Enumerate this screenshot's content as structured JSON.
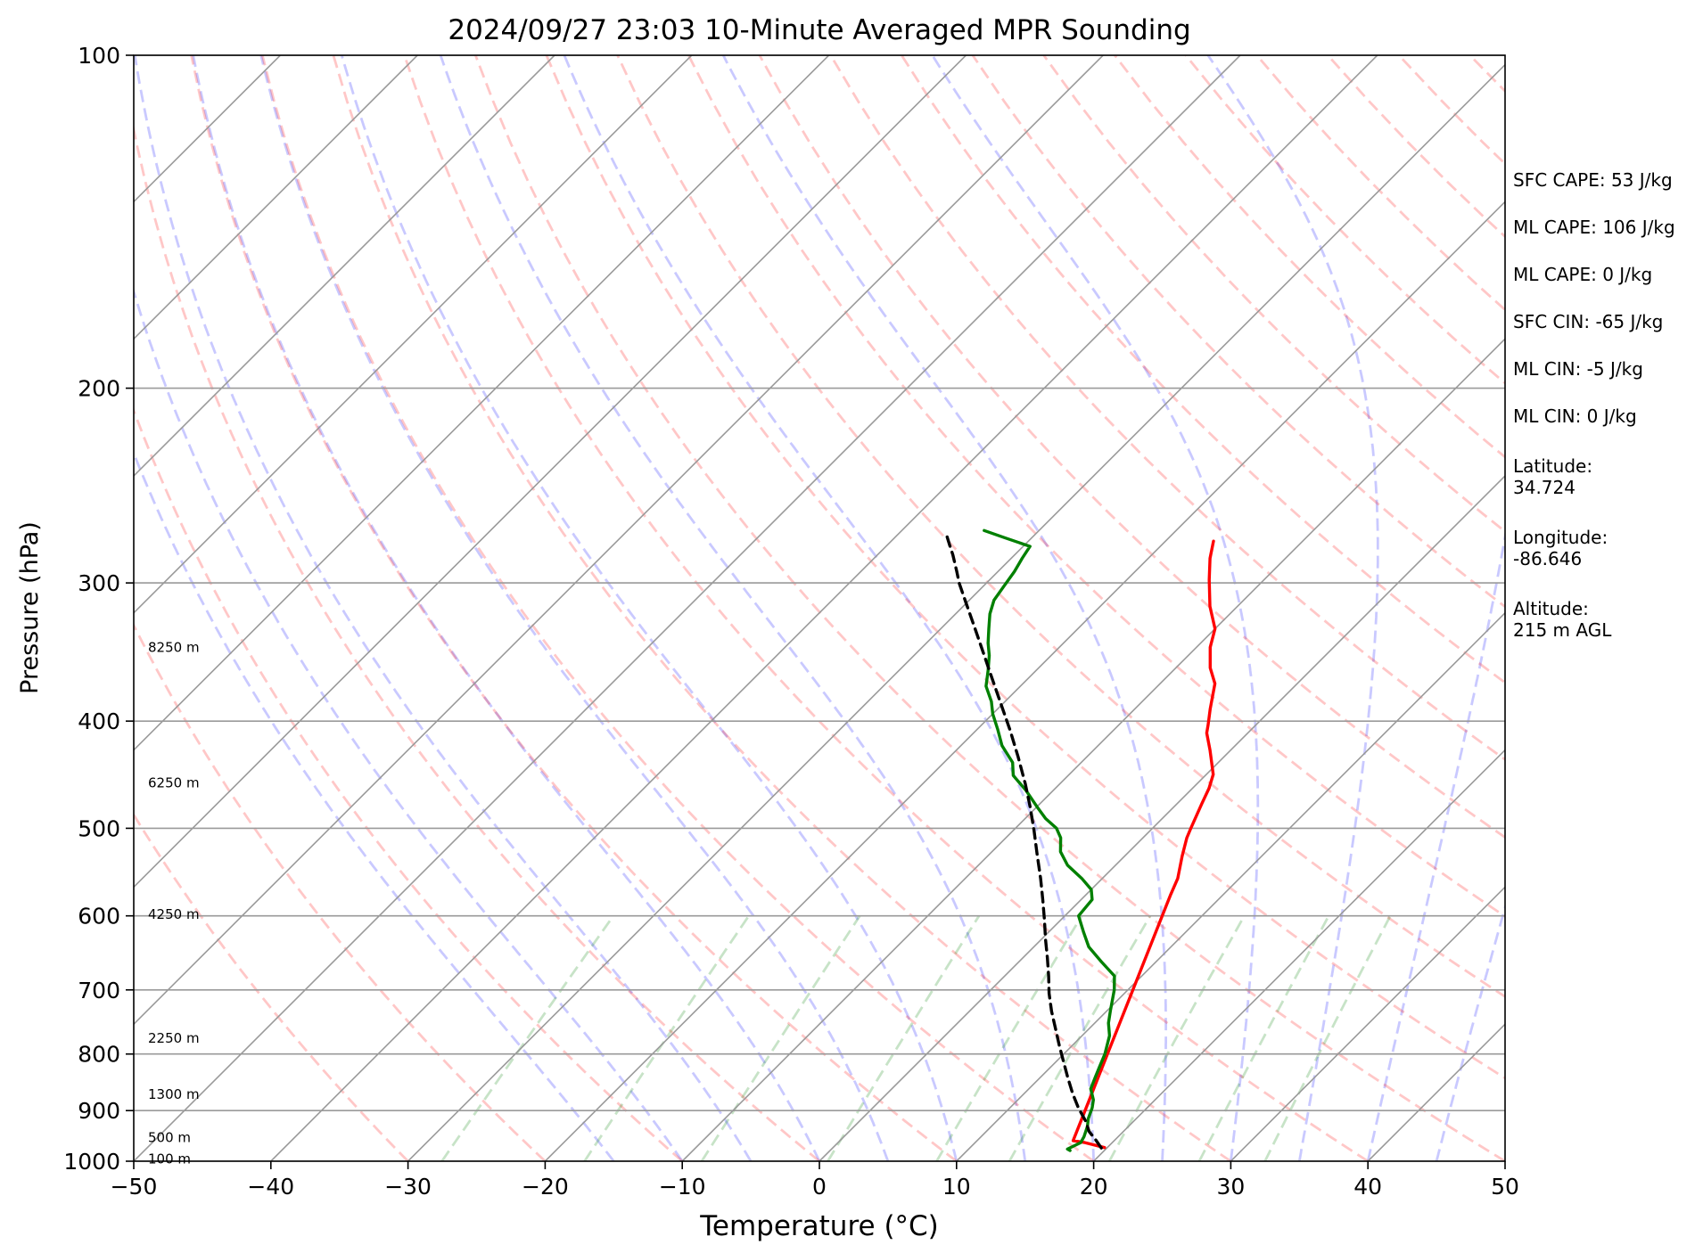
{
  "chart_data": {
    "type": "line",
    "title": "2024/09/27 23:03 10-Minute Averaged MPR Sounding",
    "xlabel": "Temperature (°C)",
    "ylabel": "Pressure (hPa)",
    "xlim": [
      -50,
      50
    ],
    "ylim": [
      1000,
      100
    ],
    "y_scale": "log",
    "skew": "temperature lines skewed 45°",
    "x_ticks": [
      "−50",
      "−40",
      "−30",
      "−20",
      "−10",
      "0",
      "10",
      "20",
      "30",
      "40",
      "50"
    ],
    "y_ticks": [
      "100",
      "200",
      "300",
      "400",
      "500",
      "600",
      "700",
      "800",
      "900",
      "1000"
    ],
    "grid": true,
    "background_lines": [
      "dry adiabats",
      "moist adiabats",
      "mixing ratio lines"
    ],
    "height_labels": [
      {
        "label": "8250 m",
        "p": 343
      },
      {
        "label": "6250 m",
        "p": 455
      },
      {
        "label": "4250 m",
        "p": 598
      },
      {
        "label": "2250 m",
        "p": 774
      },
      {
        "label": "1300 m",
        "p": 870
      },
      {
        "label": "500 m",
        "p": 952
      },
      {
        "label": "100 m",
        "p": 995
      }
    ],
    "series": [
      {
        "role": "temperature",
        "color": "#ff0000",
        "points": [
          [
            19.8,
            972
          ],
          [
            18,
            962
          ],
          [
            17,
            958
          ],
          [
            6.2,
            575
          ],
          [
            5.5,
            555
          ],
          [
            4.2,
            530
          ],
          [
            3.2,
            510
          ],
          [
            2.8,
            500
          ],
          [
            1.8,
            475
          ],
          [
            1.2,
            460
          ],
          [
            0.5,
            447
          ],
          [
            -1.5,
            425
          ],
          [
            -3,
            410
          ],
          [
            -3.5,
            403
          ],
          [
            -4.5,
            390
          ],
          [
            -6,
            370
          ],
          [
            -7.5,
            358
          ],
          [
            -9,
            343
          ],
          [
            -10,
            330
          ],
          [
            -12,
            315
          ],
          [
            -14,
            298
          ],
          [
            -15.5,
            285
          ],
          [
            -16.5,
            275
          ]
        ]
      },
      {
        "role": "dewpoint",
        "color": "#008000",
        "points": [
          [
            17.5,
            978
          ],
          [
            17.2,
            975
          ],
          [
            17.7,
            962
          ],
          [
            17.5,
            950
          ],
          [
            17,
            930
          ],
          [
            16.5,
            915
          ],
          [
            16,
            895
          ],
          [
            15.5,
            880
          ],
          [
            14.5,
            860
          ],
          [
            14,
            840
          ],
          [
            13.5,
            820
          ],
          [
            13,
            800
          ],
          [
            12,
            770
          ],
          [
            11,
            750
          ],
          [
            10.2,
            730
          ],
          [
            9,
            700
          ],
          [
            8,
            680
          ],
          [
            6,
            660
          ],
          [
            4,
            640
          ],
          [
            2.5,
            620
          ],
          [
            1,
            600
          ],
          [
            0.8,
            580
          ],
          [
            0,
            568
          ],
          [
            -1.5,
            555
          ],
          [
            -3.5,
            540
          ],
          [
            -5,
            525
          ],
          [
            -6,
            510
          ],
          [
            -7,
            500
          ],
          [
            -8.5,
            490
          ],
          [
            -10,
            478
          ],
          [
            -12,
            462
          ],
          [
            -14,
            448
          ],
          [
            -15,
            436
          ],
          [
            -17,
            421
          ],
          [
            -18.5,
            407
          ],
          [
            -20,
            394
          ],
          [
            -21,
            384
          ],
          [
            -22.5,
            372
          ],
          [
            -23.5,
            360
          ],
          [
            -24.5,
            349
          ],
          [
            -25.5,
            340
          ],
          [
            -26.5,
            330
          ],
          [
            -27.5,
            320
          ],
          [
            -28.2,
            311
          ],
          [
            -28.5,
            302
          ],
          [
            -28.8,
            293
          ],
          [
            -29.2,
            285
          ],
          [
            -29.5,
            278
          ],
          [
            -32,
            273
          ],
          [
            -34,
            269
          ]
        ]
      },
      {
        "role": "parcel profile",
        "color": "#000000",
        "style": "dashed",
        "points": [
          [
            19.6,
            973
          ],
          [
            18.5,
            955
          ],
          [
            17.5,
            940
          ],
          [
            16.5,
            920
          ],
          [
            15,
            895
          ],
          [
            13.5,
            868
          ],
          [
            12,
            840
          ],
          [
            10.5,
            812
          ],
          [
            9,
            785
          ],
          [
            7.5,
            758
          ],
          [
            6,
            732
          ],
          [
            4.5,
            705
          ],
          [
            3.2,
            680
          ],
          [
            1.8,
            655
          ],
          [
            0.3,
            630
          ],
          [
            -1.2,
            605
          ],
          [
            -2.8,
            580
          ],
          [
            -4.5,
            555
          ],
          [
            -6.5,
            528
          ],
          [
            -8.5,
            502
          ],
          [
            -10.5,
            478
          ],
          [
            -12.5,
            456
          ],
          [
            -15,
            431
          ],
          [
            -17.5,
            408
          ],
          [
            -20,
            387
          ],
          [
            -22.5,
            367
          ],
          [
            -25,
            348
          ],
          [
            -27.5,
            330
          ],
          [
            -30,
            313
          ],
          [
            -32,
            300
          ],
          [
            -33,
            293
          ],
          [
            -34.5,
            283
          ],
          [
            -35.5,
            277
          ],
          [
            -36.5,
            271
          ]
        ]
      }
    ]
  },
  "info_panel": {
    "sfc_cape": "SFC CAPE: 53 J/kg",
    "ml_cape_1": "ML CAPE: 106 J/kg",
    "ml_cape_2": "ML CAPE: 0 J/kg",
    "sfc_cin": "SFC CIN: -65 J/kg",
    "ml_cin_1": "ML CIN: -5 J/kg",
    "ml_cin_2": "ML CIN: 0 J/kg",
    "latitude_label": "Latitude:",
    "latitude_value": "34.724",
    "longitude_label": "Longitude:",
    "longitude_value": "-86.646",
    "altitude_label": "Altitude:",
    "altitude_value": "215 m AGL"
  }
}
